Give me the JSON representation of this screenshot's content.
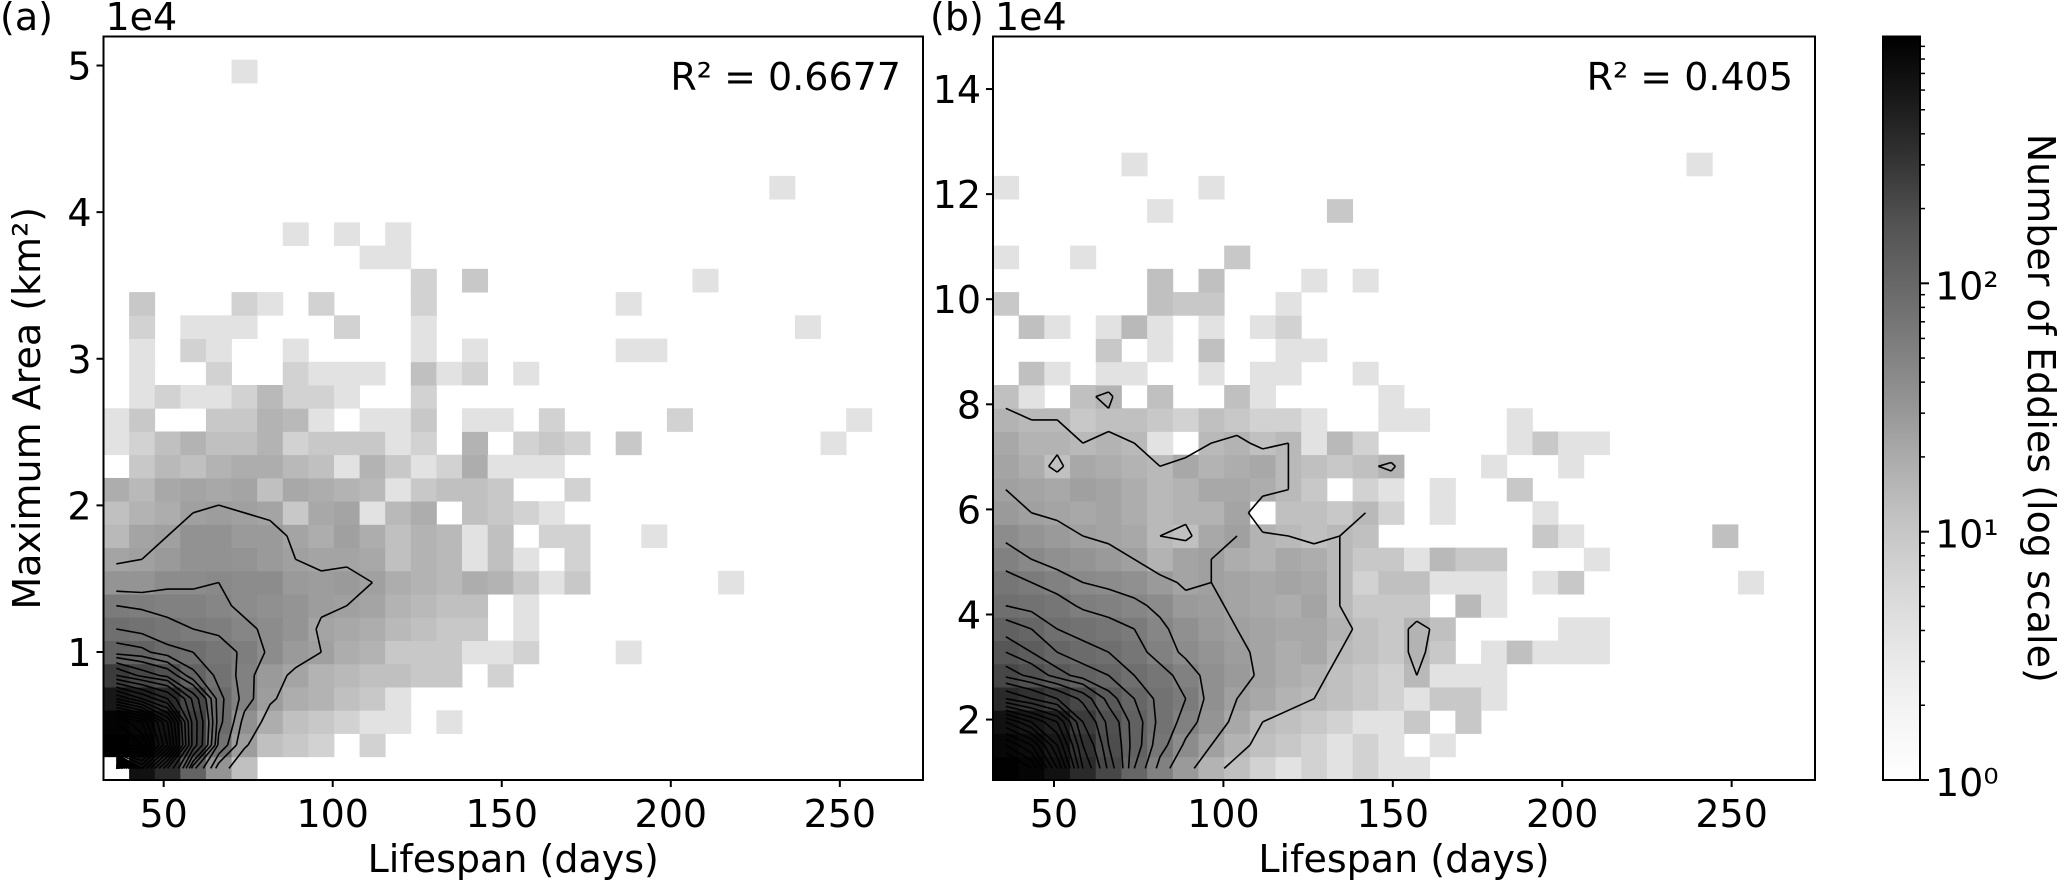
{
  "chart_data": {
    "type": "heatmap",
    "panels": [
      {
        "panel_label": "(a)",
        "offset_text": "1e4",
        "annotation": "R² = 0.6677",
        "xlabel": "Lifespan (days)",
        "ylabel": "Maximum Area (km²)",
        "xlim": [
          32.2,
          274.6
        ],
        "ylim": [
          0.127,
          5.198
        ],
        "y_unit_multiplier": 10000,
        "xticks": [
          50,
          100,
          150,
          200,
          250
        ],
        "yticks": [
          1,
          2,
          3,
          4,
          5
        ],
        "bins": [
          32,
          32
        ],
        "contours": true,
        "counts_rows_bottom_to_top": [
          [
            0,
            600,
            300,
            65,
            14,
            4
          ],
          [
            980,
            900,
            600,
            180,
            40,
            11,
            4,
            3,
            2,
            0,
            2
          ],
          [
            900,
            800,
            550,
            180,
            50,
            16,
            7,
            4,
            3,
            2,
            1,
            1,
            0,
            1
          ],
          [
            500,
            400,
            300,
            150,
            50,
            25,
            11,
            7,
            6,
            4,
            3,
            1
          ],
          [
            200,
            150,
            120,
            65,
            40,
            25,
            12,
            9,
            6,
            5,
            4,
            4,
            3,
            3,
            0,
            2
          ],
          [
            70,
            65,
            50,
            45,
            35,
            28,
            18,
            12,
            10,
            7,
            6,
            3,
            3,
            3,
            1,
            1,
            2,
            0,
            0,
            0,
            1
          ],
          [
            45,
            40,
            35,
            30,
            28,
            22,
            18,
            14,
            9,
            8,
            7,
            5,
            4,
            3,
            3,
            0,
            1
          ],
          [
            30,
            28,
            25,
            25,
            22,
            18,
            16,
            14,
            11,
            10,
            9,
            6,
            5,
            4,
            4,
            0,
            1
          ],
          [
            14,
            14,
            18,
            18,
            20,
            18,
            18,
            12,
            11,
            12,
            10,
            7,
            6,
            5,
            7,
            6,
            3,
            1,
            3,
            0,
            0,
            0,
            0,
            0,
            1
          ],
          [
            9,
            10,
            12,
            15,
            15,
            14,
            12,
            10,
            9,
            9,
            8,
            4,
            6,
            5,
            1,
            4,
            1,
            0,
            2
          ],
          [
            5,
            9,
            10,
            15,
            15,
            12,
            12,
            9,
            7,
            10,
            7,
            4,
            6,
            5,
            1,
            4,
            0,
            2,
            2,
            0,
            0,
            1
          ],
          [
            4,
            6,
            7,
            10,
            11,
            10,
            9,
            3,
            8,
            9,
            1,
            5,
            7,
            0,
            4,
            3,
            2,
            1
          ],
          [
            7,
            5,
            8,
            9,
            8,
            9,
            4,
            8,
            7,
            6,
            5,
            1,
            3,
            4,
            4,
            3,
            0,
            0,
            2
          ],
          [
            0,
            3,
            5,
            4,
            6,
            7,
            7,
            5,
            4,
            1,
            6,
            3,
            1,
            2,
            7,
            1,
            1,
            1
          ],
          [
            1,
            2,
            4,
            6,
            4,
            4,
            6,
            2,
            3,
            3,
            3,
            1,
            2,
            0,
            6,
            0,
            2,
            3,
            2,
            0,
            3,
            0,
            0,
            0,
            0,
            0,
            0,
            0,
            1
          ],
          [
            1,
            3,
            0,
            0,
            3,
            3,
            6,
            5,
            1,
            0,
            1,
            1,
            3,
            0,
            1,
            1,
            0,
            2,
            0,
            0,
            0,
            0,
            2,
            0,
            0,
            0,
            0,
            0,
            0,
            1
          ],
          [
            0,
            1,
            2,
            1,
            1,
            2,
            5,
            2,
            2,
            1,
            0,
            0,
            2
          ],
          [
            0,
            1,
            0,
            0,
            2,
            0,
            0,
            2,
            1,
            1,
            1,
            0,
            4,
            1,
            2,
            0,
            1
          ],
          [
            0,
            1,
            0,
            2,
            1,
            0,
            0,
            1,
            0,
            0,
            0,
            0,
            1,
            0,
            1,
            0,
            0,
            0,
            0,
            0,
            1,
            1
          ],
          [
            0,
            2,
            0,
            1,
            1,
            1,
            0,
            0,
            0,
            2,
            0,
            0,
            1,
            0,
            0,
            0,
            0,
            0,
            0,
            0,
            0,
            0,
            0,
            0,
            0,
            0,
            0,
            1
          ],
          [
            0,
            3,
            0,
            0,
            0,
            2,
            1,
            0,
            2,
            0,
            0,
            0,
            2,
            0,
            0,
            0,
            0,
            0,
            0,
            0,
            1
          ],
          [
            0,
            0,
            0,
            0,
            0,
            0,
            0,
            0,
            0,
            0,
            0,
            0,
            2,
            0,
            3,
            0,
            0,
            0,
            0,
            0,
            0,
            0,
            0,
            1
          ],
          [
            0,
            0,
            0,
            0,
            0,
            0,
            0,
            0,
            0,
            0,
            1,
            1
          ],
          [
            0,
            0,
            0,
            0,
            0,
            0,
            0,
            1,
            0,
            1,
            0,
            1
          ],
          [],
          [
            0,
            0,
            0,
            0,
            0,
            0,
            0,
            0,
            0,
            0,
            0,
            0,
            0,
            0,
            0,
            0,
            0,
            0,
            0,
            0,
            0,
            0,
            0,
            0,
            0,
            0,
            1
          ],
          [],
          [],
          [],
          [],
          [
            0,
            0,
            0,
            0,
            0,
            1
          ],
          []
        ]
      },
      {
        "panel_label": "(b)",
        "offset_text": "1e4",
        "annotation": "R² = 0.405",
        "xlabel": "Lifespan (days)",
        "ylabel": "",
        "xlim": [
          32.0,
          274.6
        ],
        "ylim": [
          0.85,
          15.0
        ],
        "y_unit_multiplier": 10000,
        "xticks": [
          50,
          100,
          150,
          200,
          250
        ],
        "yticks": [
          2,
          4,
          6,
          8,
          10,
          12,
          14
        ],
        "bins": [
          32,
          32
        ],
        "contours": true,
        "counts_rows_bottom_to_top": [
          [
            950,
            850,
            600,
            300,
            150,
            60,
            25,
            12,
            6,
            4,
            2,
            1,
            2,
            1,
            2,
            1,
            1
          ],
          [
            800,
            700,
            500,
            250,
            130,
            70,
            35,
            18,
            10,
            6,
            4,
            3,
            2,
            1,
            2,
            1,
            0,
            1
          ],
          [
            600,
            500,
            400,
            200,
            120,
            70,
            40,
            25,
            14,
            8,
            5,
            4,
            3,
            2,
            1,
            1,
            3,
            0,
            3
          ],
          [
            300,
            250,
            200,
            150,
            90,
            60,
            40,
            30,
            16,
            10,
            8,
            6,
            5,
            4,
            3,
            2,
            1,
            3,
            3,
            1
          ],
          [
            150,
            120,
            90,
            70,
            60,
            45,
            35,
            25,
            16,
            12,
            9,
            7,
            6,
            4,
            3,
            2,
            5,
            1,
            1,
            1
          ],
          [
            100,
            80,
            60,
            50,
            45,
            35,
            25,
            18,
            14,
            11,
            9,
            7,
            8,
            5,
            4,
            3,
            6,
            3,
            0,
            1,
            4,
            1,
            1,
            1
          ],
          [
            70,
            60,
            45,
            40,
            35,
            30,
            22,
            16,
            12,
            10,
            9,
            8,
            8,
            6,
            4,
            3,
            6,
            4,
            0,
            0,
            0,
            0,
            1,
            1
          ],
          [
            45,
            40,
            35,
            28,
            25,
            22,
            18,
            12,
            11,
            9,
            8,
            7,
            9,
            5,
            3,
            3,
            3,
            0,
            5,
            1
          ],
          [
            35,
            30,
            25,
            20,
            18,
            16,
            12,
            9,
            10,
            9,
            8,
            9,
            8,
            5,
            2,
            4,
            4,
            1,
            1,
            1,
            0,
            1,
            3,
            0,
            0,
            0,
            0,
            0,
            0,
            1
          ],
          [
            25,
            20,
            16,
            14,
            12,
            10,
            6,
            9,
            10,
            7,
            6,
            8,
            7,
            5,
            3,
            3,
            1,
            5,
            3,
            3,
            0,
            0,
            0,
            1
          ],
          [
            18,
            14,
            12,
            10,
            9,
            8,
            5,
            4,
            8,
            10,
            6,
            5,
            4,
            5,
            4,
            0,
            0,
            0,
            0,
            0,
            0,
            3,
            1,
            0,
            0,
            0,
            0,
            0,
            4
          ],
          [
            12,
            10,
            9,
            8,
            9,
            7,
            5,
            6,
            6,
            9,
            0,
            4,
            4,
            3,
            5,
            2,
            0,
            1,
            0,
            0,
            0,
            1
          ],
          [
            10,
            9,
            8,
            10,
            9,
            7,
            5,
            6,
            8,
            8,
            7,
            5,
            3,
            0,
            2,
            1,
            0,
            1,
            0,
            0,
            3
          ],
          [
            9,
            7,
            4,
            8,
            7,
            6,
            5,
            8,
            6,
            7,
            8,
            5,
            4,
            3,
            4,
            6,
            0,
            0,
            0,
            1,
            0,
            0,
            1
          ],
          [
            8,
            6,
            6,
            5,
            6,
            5,
            1,
            0,
            5,
            6,
            4,
            5,
            1,
            5,
            2,
            0,
            0,
            0,
            0,
            0,
            1,
            3,
            1,
            1
          ],
          [
            6,
            5,
            5,
            3,
            4,
            4,
            3,
            2,
            4,
            3,
            2,
            2,
            1,
            0,
            0,
            1,
            1,
            0,
            0,
            0,
            1
          ],
          [
            4,
            1,
            0,
            4,
            6,
            0,
            4,
            0,
            0,
            4,
            1,
            0,
            0,
            0,
            0,
            1
          ],
          [
            0,
            4,
            1,
            0,
            1,
            1,
            0,
            0,
            1,
            0,
            1,
            1,
            0,
            0,
            1
          ],
          [
            0,
            0,
            0,
            0,
            3,
            0,
            1,
            0,
            4,
            0,
            0,
            1,
            1
          ],
          [
            0,
            4,
            1,
            0,
            1,
            5,
            1,
            0,
            1,
            0,
            1,
            2
          ],
          [
            3,
            0,
            0,
            0,
            0,
            0,
            4,
            3,
            3,
            0,
            0,
            1
          ],
          [
            0,
            0,
            0,
            0,
            0,
            0,
            4,
            0,
            4,
            0,
            0,
            0,
            1,
            0,
            1
          ],
          [
            1,
            0,
            0,
            1,
            0,
            0,
            0,
            0,
            0,
            3
          ],
          [],
          [
            0,
            0,
            0,
            0,
            0,
            0,
            1,
            0,
            0,
            0,
            0,
            0,
            0,
            3
          ],
          [
            1,
            0,
            0,
            0,
            0,
            0,
            0,
            0,
            1
          ],
          [
            0,
            0,
            0,
            0,
            0,
            1,
            0,
            0,
            0,
            0,
            0,
            0,
            0,
            0,
            0,
            0,
            0,
            0,
            0,
            0,
            0,
            0,
            0,
            0,
            0,
            0,
            0,
            1
          ],
          [],
          [],
          [],
          [],
          []
        ]
      }
    ],
    "colorbar": {
      "label": "Number of Eddies (log scale)",
      "scale": "log",
      "cmap": "Greys",
      "vmin": 1,
      "vmax": 986,
      "ticks": [
        {
          "value": 1,
          "label": "10⁰"
        },
        {
          "value": 10,
          "label": "10¹"
        },
        {
          "value": 100,
          "label": "10²"
        }
      ]
    },
    "contour_color": "#000000"
  }
}
